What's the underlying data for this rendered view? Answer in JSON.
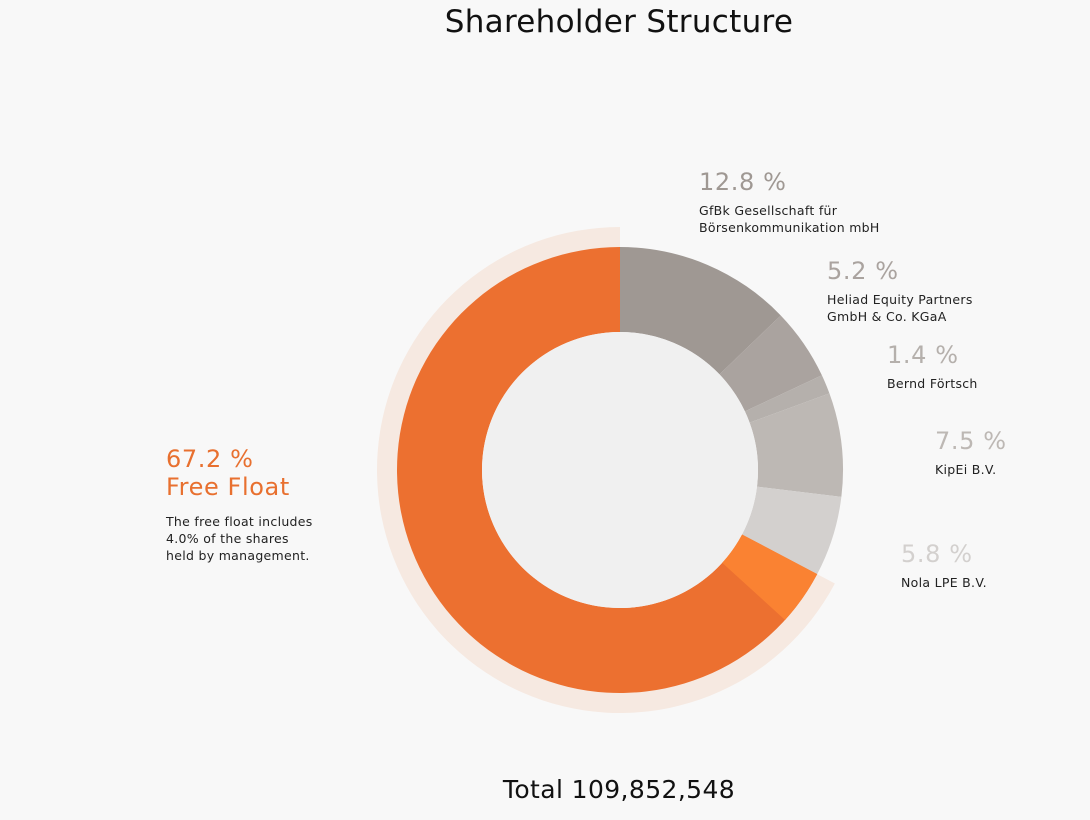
{
  "chart_data": {
    "type": "pie",
    "variant": "donut",
    "title": "Shareholder Structure",
    "total_label": "Total 109,852,548",
    "colors": {
      "free_float": "#ec7030",
      "free_float_highlight": "#fa8232",
      "free_float_ring": "#f6e9e1",
      "gfbk": "#9f9893",
      "heliad": "#aaa39f",
      "fortsch": "#b5b0ac",
      "kipei": "#bdb8b4",
      "nola": "#d3d0ce",
      "hole": "#f0f0f0",
      "gfbk_text": "#9f9893",
      "heliad_text": "#aaa39f",
      "fortsch_text": "#b5b0ac",
      "kipei_text": "#bdb8b4",
      "nola_text": "#d3d0ce"
    },
    "slices": [
      {
        "key": "gfbk",
        "pct_label": "12.8 %",
        "name": "GfBk Gesellschaft für\nBörsenkommunikation mbH",
        "value": 12.8
      },
      {
        "key": "heliad",
        "pct_label": "5.2 %",
        "name": "Heliad Equity Partners\nGmbH & Co. KGaA",
        "value": 5.2
      },
      {
        "key": "fortsch",
        "pct_label": "1.4 %",
        "name": "Bernd Förtsch",
        "value": 1.4
      },
      {
        "key": "kipei",
        "pct_label": "7.5 %",
        "name": "KipEi B.V.",
        "value": 7.5
      },
      {
        "key": "nola",
        "pct_label": "5.8 %",
        "name": "Nola LPE B.V.",
        "value": 5.8
      },
      {
        "key": "free_float",
        "pct_label": "67.2 %",
        "name": "Free Float",
        "value": 67.2,
        "note": "The free float includes\n4.0% of the shares\nheld by management.",
        "management_portion": 4.0
      }
    ]
  }
}
